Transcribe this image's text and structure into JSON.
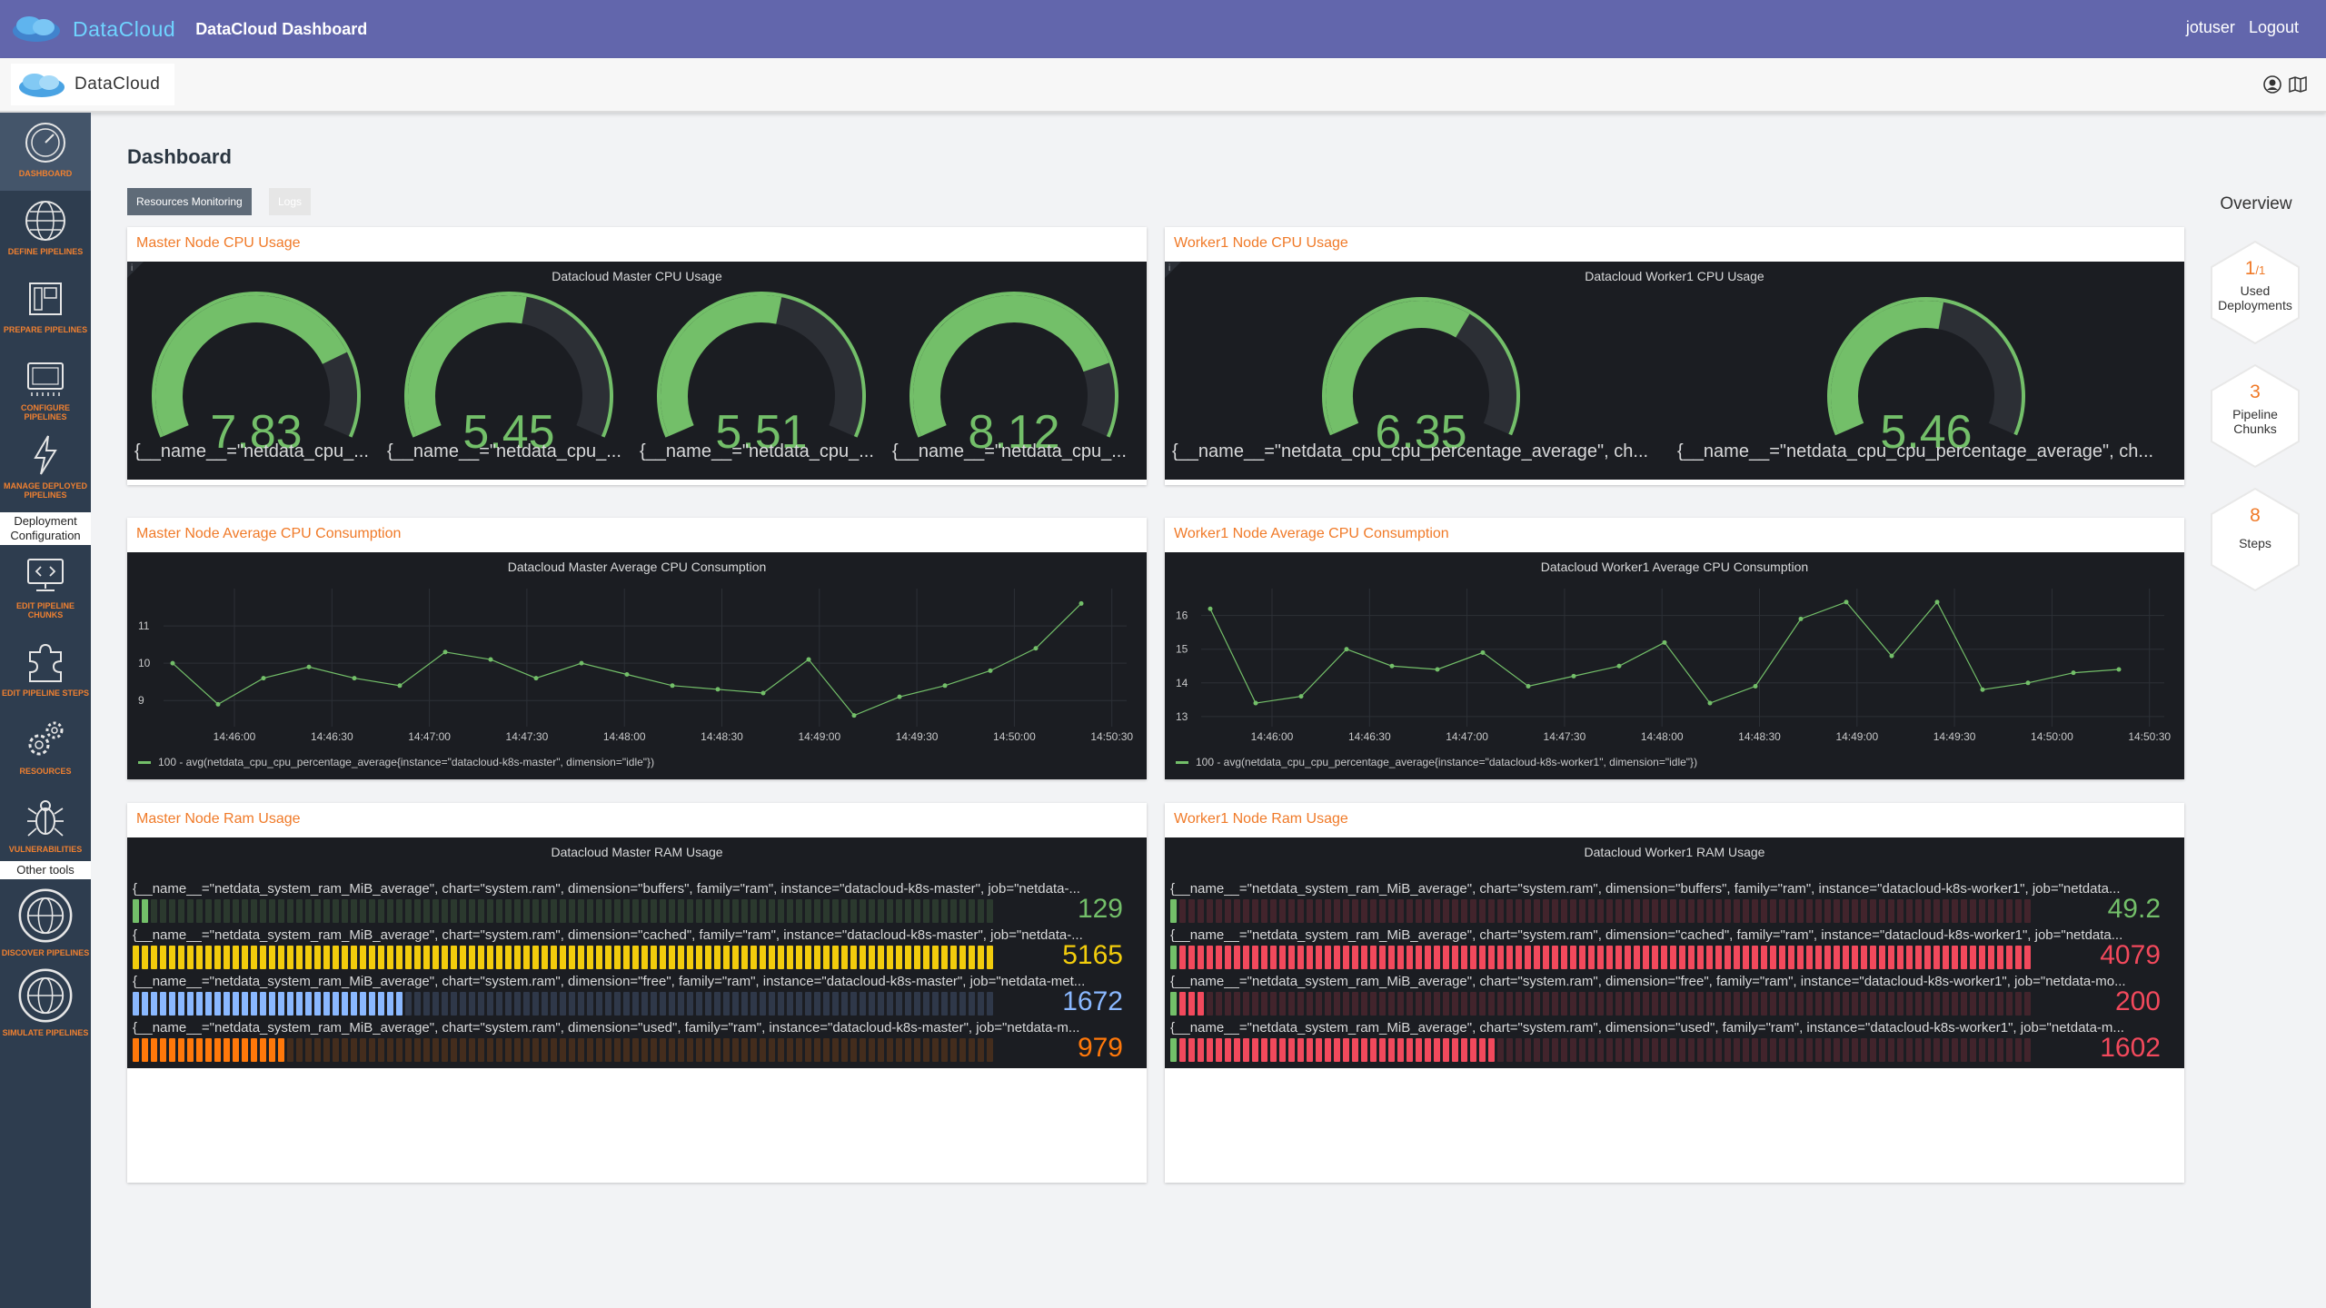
{
  "header": {
    "brand": "DataCloud",
    "app_title": "DataCloud Dashboard",
    "user": "jotuser",
    "logout": "Logout"
  },
  "subbar": {
    "logo_text": "DataCloud"
  },
  "sidebar": {
    "items": [
      {
        "label": "DASHBOARD",
        "icon": "gauge-icon"
      },
      {
        "label": "DEFINE PIPELINES",
        "icon": "globe-icon"
      },
      {
        "label": "PREPARE PIPELINES",
        "icon": "layout-icon"
      },
      {
        "label": "CONFIGURE PIPELINES",
        "icon": "chip-icon"
      },
      {
        "label": "MANAGE DEPLOYED PIPELINES",
        "icon": "lightning-icon"
      },
      {
        "label": "EDIT PIPELINE CHUNKS",
        "icon": "code-monitor-icon"
      },
      {
        "label": "EDIT PIPELINE STEPS",
        "icon": "puzzle-icon"
      },
      {
        "label": "RESOURCES",
        "icon": "gears-icon"
      },
      {
        "label": "VULNERABILITIES",
        "icon": "bug-icon"
      },
      {
        "label": "DISCOVER PIPELINES",
        "icon": "globe-icon"
      },
      {
        "label": "SIMULATE PIPELINES",
        "icon": "globe-icon"
      }
    ],
    "section_deployment": "Deployment Configuration",
    "section_other": "Other tools"
  },
  "page": {
    "title": "Dashboard",
    "tabs": [
      "Resources Monitoring",
      "Logs"
    ]
  },
  "panels": {
    "master_cpu": {
      "title": "Master Node CPU Usage",
      "inner_title": "Datacloud Master CPU Usage",
      "gauges": [
        {
          "value": "7.83",
          "pct": 0.783,
          "legend": "{__name__=\"netdata_cpu_..."
        },
        {
          "value": "5.45",
          "pct": 0.545,
          "legend": "{__name__=\"netdata_cpu_..."
        },
        {
          "value": "5.51",
          "pct": 0.551,
          "legend": "{__name__=\"netdata_cpu_..."
        },
        {
          "value": "8.12",
          "pct": 0.812,
          "legend": "{__name__=\"netdata_cpu_..."
        }
      ]
    },
    "worker_cpu": {
      "title": "Worker1 Node CPU Usage",
      "inner_title": "Datacloud Worker1 CPU Usage",
      "gauges": [
        {
          "value": "6.35",
          "pct": 0.635,
          "legend": "{__name__=\"netdata_cpu_cpu_percentage_average\", ch..."
        },
        {
          "value": "5.46",
          "pct": 0.546,
          "legend": "{__name__=\"netdata_cpu_cpu_percentage_average\", ch..."
        }
      ]
    },
    "master_avg": {
      "title": "Master Node Average CPU Consumption",
      "inner_title": "Datacloud Master Average CPU Consumption",
      "legend": "100 - avg(netdata_cpu_cpu_percentage_average{instance=\"datacloud-k8s-master\", dimension=\"idle\"})"
    },
    "worker_avg": {
      "title": "Worker1 Node Average CPU Consumption",
      "inner_title": "Datacloud Worker1 Average CPU Consumption",
      "legend": "100 - avg(netdata_cpu_cpu_percentage_average{instance=\"datacloud-k8s-worker1\", dimension=\"idle\"})"
    },
    "master_ram": {
      "title": "Master Node Ram Usage",
      "inner_title": "Datacloud Master RAM Usage",
      "rows": [
        {
          "label": "{__name__=\"netdata_system_ram_MiB_average\", chart=\"system.ram\", dimension=\"buffers\", family=\"ram\", instance=\"datacloud-k8s-master\", job=\"netdata-...",
          "value": "129",
          "fill": 0.02
        },
        {
          "label": "{__name__=\"netdata_system_ram_MiB_average\", chart=\"system.ram\", dimension=\"cached\", family=\"ram\", instance=\"datacloud-k8s-master\", job=\"netdata-...",
          "value": "5165",
          "fill": 1.0
        },
        {
          "label": "{__name__=\"netdata_system_ram_MiB_average\", chart=\"system.ram\", dimension=\"free\", family=\"ram\", instance=\"datacloud-k8s-master\", job=\"netdata-met...",
          "value": "1672",
          "fill": 0.32
        },
        {
          "label": "{__name__=\"netdata_system_ram_MiB_average\", chart=\"system.ram\", dimension=\"used\", family=\"ram\", instance=\"datacloud-k8s-master\", job=\"netdata-m...",
          "value": "979",
          "fill": 0.18
        }
      ]
    },
    "worker_ram": {
      "title": "Worker1 Node Ram Usage",
      "inner_title": "Datacloud Worker1 RAM Usage",
      "rows": [
        {
          "label": "{__name__=\"netdata_system_ram_MiB_average\", chart=\"system.ram\", dimension=\"buffers\", family=\"ram\", instance=\"datacloud-k8s-worker1\", job=\"netdata...",
          "value": "49.2",
          "fill": 0.01
        },
        {
          "label": "{__name__=\"netdata_system_ram_MiB_average\", chart=\"system.ram\", dimension=\"cached\", family=\"ram\", instance=\"datacloud-k8s-worker1\", job=\"netdata...",
          "value": "4079",
          "fill": 1.0
        },
        {
          "label": "{__name__=\"netdata_system_ram_MiB_average\", chart=\"system.ram\", dimension=\"free\", family=\"ram\", instance=\"datacloud-k8s-worker1\", job=\"netdata-mo...",
          "value": "200",
          "fill": 0.04
        },
        {
          "label": "{__name__=\"netdata_system_ram_MiB_average\", chart=\"system.ram\", dimension=\"used\", family=\"ram\", instance=\"datacloud-k8s-worker1\", job=\"netdata-m...",
          "value": "1602",
          "fill": 0.38
        }
      ]
    }
  },
  "overview": {
    "title": "Overview",
    "items": [
      {
        "num": "1",
        "denom": "/1",
        "caption": "Used Deployments"
      },
      {
        "num": "3",
        "denom": "",
        "caption": "Pipeline Chunks"
      },
      {
        "num": "8",
        "denom": "",
        "caption": "Steps"
      }
    ]
  },
  "colors": {
    "header": "#6266ac",
    "sidebar": "#2e3d4f",
    "accent_orange": "#f07a28",
    "graph_green": "#73bf69",
    "ram_yellow": "#f2cc0c",
    "ram_blue": "#8ab8ff",
    "ram_orange": "#ff780a",
    "ram_red": "#f2495c"
  },
  "chart_data": [
    {
      "type": "line",
      "title": "Datacloud Master Average CPU Consumption",
      "x": [
        "14:45:45",
        "14:45:55",
        "14:46:10",
        "14:46:20",
        "14:46:35",
        "14:46:50",
        "14:47:00",
        "14:47:15",
        "14:47:30",
        "14:47:45",
        "14:48:00",
        "14:48:15",
        "14:48:30",
        "14:48:45",
        "14:49:00",
        "14:49:15",
        "14:49:30",
        "14:49:45",
        "14:50:00",
        "14:50:15",
        "14:50:30",
        "14:50:45"
      ],
      "series": [
        {
          "name": "100 - avg(netdata_cpu_cpu_percentage_average{instance=\"datacloud-k8s-master\", dimension=\"idle\"})",
          "values": [
            10.0,
            8.9,
            9.6,
            9.9,
            9.6,
            9.4,
            10.3,
            10.1,
            9.6,
            10.0,
            9.7,
            9.4,
            9.3,
            9.2,
            10.1,
            8.6,
            9.1,
            9.4,
            9.8,
            10.4,
            11.6,
            null
          ]
        }
      ],
      "ylim": [
        8.3,
        12
      ],
      "yticks": [
        "11",
        "10",
        "9"
      ],
      "xticks": [
        "14:46:00",
        "14:46:30",
        "14:47:00",
        "14:47:30",
        "14:48:00",
        "14:48:30",
        "14:49:00",
        "14:49:30",
        "14:50:00",
        "14:50:30"
      ]
    },
    {
      "type": "line",
      "title": "Datacloud Worker1 Average CPU Consumption",
      "x": [
        "14:45:45",
        "14:45:55",
        "14:46:10",
        "14:46:20",
        "14:46:35",
        "14:46:50",
        "14:47:00",
        "14:47:15",
        "14:47:30",
        "14:47:45",
        "14:48:00",
        "14:48:15",
        "14:48:30",
        "14:48:45",
        "14:49:00",
        "14:49:15",
        "14:49:30",
        "14:49:45",
        "14:50:00",
        "14:50:15",
        "14:50:30",
        "14:50:45"
      ],
      "series": [
        {
          "name": "100 - avg(netdata_cpu_cpu_percentage_average{instance=\"datacloud-k8s-worker1\", dimension=\"idle\"})",
          "values": [
            16.2,
            13.4,
            13.6,
            15.0,
            14.5,
            14.4,
            14.9,
            13.9,
            14.2,
            14.5,
            15.2,
            13.4,
            13.9,
            15.9,
            16.4,
            14.8,
            16.4,
            13.8,
            14.0,
            14.3,
            14.4,
            null
          ]
        }
      ],
      "ylim": [
        12.7,
        16.8
      ],
      "yticks": [
        "16",
        "15",
        "14",
        "13"
      ],
      "xticks": [
        "14:46:00",
        "14:46:30",
        "14:47:00",
        "14:47:30",
        "14:48:00",
        "14:48:30",
        "14:49:00",
        "14:49:30",
        "14:50:00",
        "14:50:30"
      ]
    }
  ]
}
